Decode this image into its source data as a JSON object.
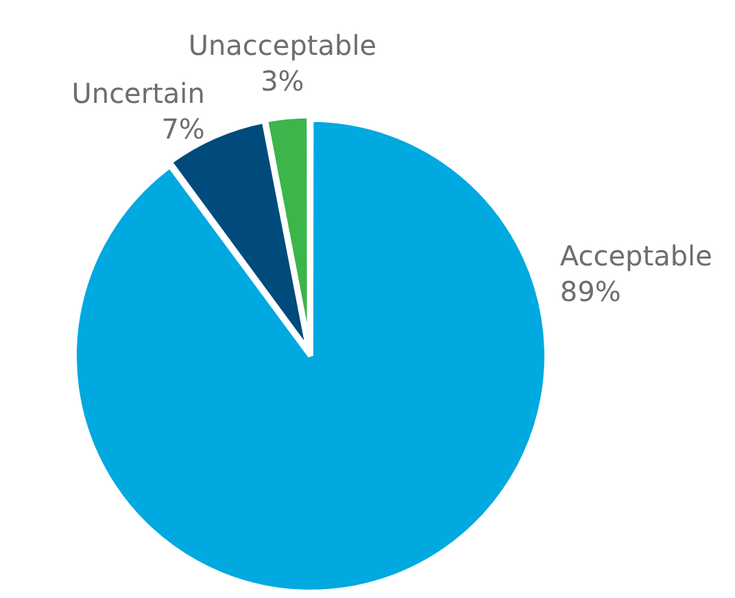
{
  "chart_data": {
    "type": "pie",
    "categories": [
      "Acceptable",
      "Uncertain",
      "Unacceptable"
    ],
    "values": [
      89,
      7,
      3
    ],
    "colors": [
      "#00a9e0",
      "#004b7c",
      "#3cb54a"
    ],
    "value_labels": [
      "89%",
      "7%",
      "3%"
    ],
    "legend": false
  }
}
